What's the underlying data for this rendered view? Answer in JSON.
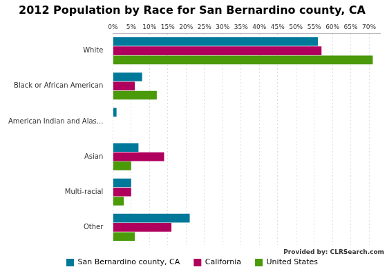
{
  "chart_data": {
    "type": "bar",
    "orientation": "horizontal",
    "title": "2012 Population by Race for San Bernardino county, CA",
    "annotation": "Provided by: CLRSearch.com",
    "categories": [
      "White",
      "Black or African American",
      "American Indian and Alas...",
      "Asian",
      "Multi-racial",
      "Other"
    ],
    "series": [
      {
        "name": "San Bernardino county, CA",
        "color": "#00789a",
        "values": [
          56,
          8,
          1,
          7,
          5,
          21
        ]
      },
      {
        "name": "California",
        "color": "#b0005e",
        "values": [
          57,
          6,
          0,
          14,
          5,
          16
        ]
      },
      {
        "name": "United States",
        "color": "#4a9a0a",
        "values": [
          71,
          12,
          0,
          5,
          3,
          6
        ]
      }
    ],
    "xlim": [
      0,
      73
    ],
    "xticks": [
      {
        "value": 0,
        "label": "0%"
      },
      {
        "value": 5,
        "label": "5%"
      },
      {
        "value": 10,
        "label": "10%"
      },
      {
        "value": 15,
        "label": "15%"
      },
      {
        "value": 20,
        "label": "20%"
      },
      {
        "value": 25,
        "label": "25%"
      },
      {
        "value": 30,
        "label": "30%"
      },
      {
        "value": 35,
        "label": "35%"
      },
      {
        "value": 40,
        "label": "40%"
      },
      {
        "value": 45,
        "label": "45%"
      },
      {
        "value": 50,
        "label": "50%"
      },
      {
        "value": 55,
        "label": "55%"
      },
      {
        "value": 60,
        "label": "60%"
      },
      {
        "value": 65,
        "label": "65%"
      },
      {
        "value": 70,
        "label": "70%"
      }
    ],
    "grid": true,
    "legend": "bottom"
  }
}
